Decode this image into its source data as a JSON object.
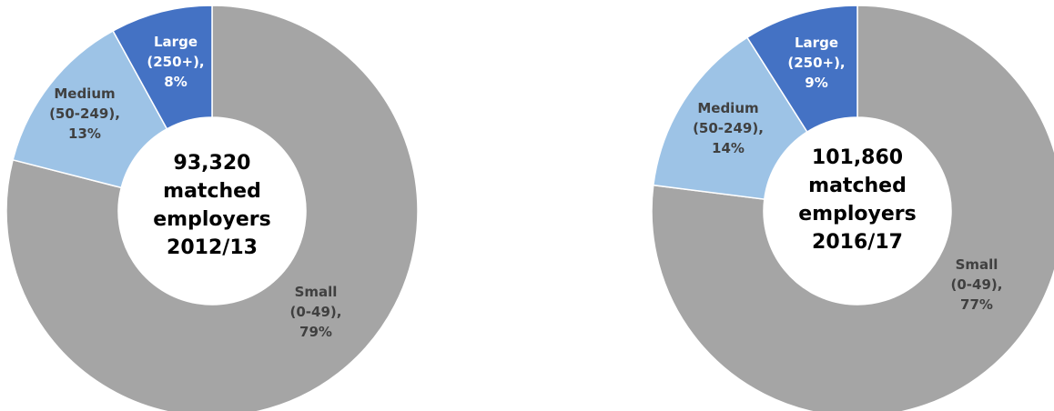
{
  "chart_data": [
    {
      "type": "pie",
      "center_label": [
        "93,320",
        "matched",
        "employers",
        "2012/13"
      ],
      "slices": [
        {
          "name": "Small",
          "range": "(0-49),",
          "value": 79,
          "pct_label": "79%",
          "color": "#a5a5a5",
          "label_color": "#404040"
        },
        {
          "name": "Medium",
          "range": "(50-249),",
          "value": 13,
          "pct_label": "13%",
          "color": "#9dc3e6",
          "label_color": "#404040"
        },
        {
          "name": "Large",
          "range": "(250+),",
          "value": 8,
          "pct_label": "8%",
          "color": "#4472c4",
          "label_color": "#ffffff"
        }
      ]
    },
    {
      "type": "pie",
      "center_label": [
        "101,860",
        "matched",
        "employers",
        "2016/17"
      ],
      "slices": [
        {
          "name": "Small",
          "range": "(0-49),",
          "value": 77,
          "pct_label": "77%",
          "color": "#a5a5a5",
          "label_color": "#404040"
        },
        {
          "name": "Medium",
          "range": "(50-249),",
          "value": 14,
          "pct_label": "14%",
          "color": "#9dc3e6",
          "label_color": "#404040"
        },
        {
          "name": "Large",
          "range": "(250+),",
          "value": 9,
          "pct_label": "9%",
          "color": "#4472c4",
          "label_color": "#ffffff"
        }
      ]
    }
  ]
}
